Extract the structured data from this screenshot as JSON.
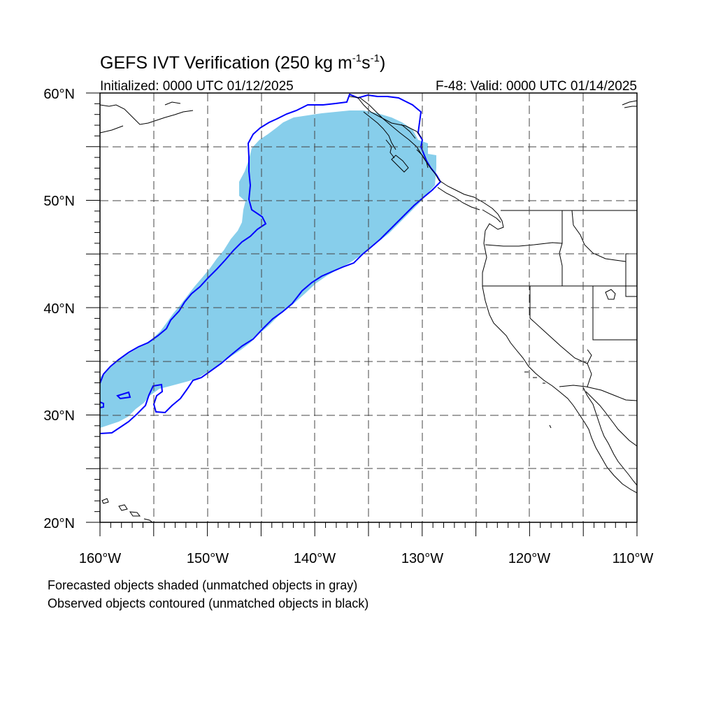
{
  "title_main": "GEFS IVT Verification (250 kg m",
  "title_exp1": "-1",
  "title_mid": "s",
  "title_exp2": "-1",
  "title_end": ")",
  "initialized": "Initialized: 0000 UTC 01/12/2025",
  "valid": "F-48: Valid: 0000 UTC 01/14/2025",
  "lat_labels": [
    "60°N",
    "50°N",
    "40°N",
    "30°N",
    "20°N"
  ],
  "lon_labels": [
    "160°W",
    "150°W",
    "140°W",
    "130°W",
    "120°W",
    "110°W"
  ],
  "footnotes": [
    "Forecasted objects shaded (unmatched objects in gray)",
    "Observed objects contoured (unmatched objects in black)"
  ],
  "colors": {
    "forecast_fill": "#87CEEB",
    "observed_contour": "#0000FF",
    "coastline": "#000000",
    "grid": "#444444"
  },
  "map_extent": {
    "lon_min": -160,
    "lon_max": -110,
    "lat_min": 20,
    "lat_max": 60
  }
}
